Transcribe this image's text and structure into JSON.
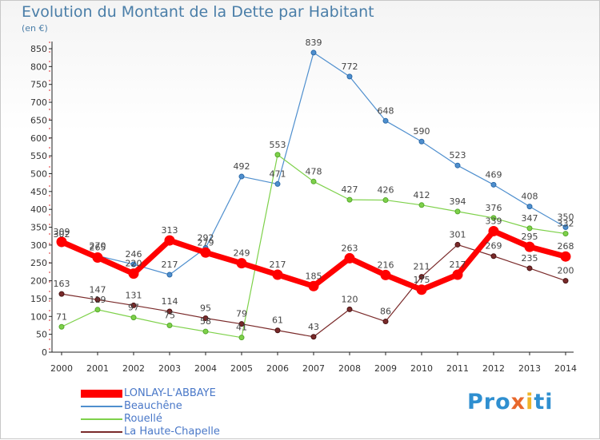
{
  "title": "Evolution du Montant de la Dette par Habitant",
  "unit": "(en €)",
  "logo": "Proxiti",
  "chart_data": {
    "type": "line",
    "title": "Evolution du Montant de la Dette par Habitant",
    "subtitle": "(en €)",
    "xlabel": "",
    "ylabel": "",
    "x": [
      "2000",
      "2001",
      "2002",
      "2003",
      "2004",
      "2005",
      "2006",
      "2007",
      "2008",
      "2009",
      "2010",
      "2011",
      "2012",
      "2013",
      "2014"
    ],
    "yticks": [
      0,
      50,
      100,
      150,
      200,
      250,
      300,
      350,
      400,
      450,
      500,
      550,
      600,
      650,
      700,
      750,
      800,
      850
    ],
    "ylim": [
      0,
      870
    ],
    "grid": false,
    "legend_position": "bottom-left",
    "series": [
      {
        "name": "LONLAY-L'ABBAYE",
        "color": "#ff0000",
        "values": [
          309,
          265,
          220,
          313,
          279,
          249,
          217,
          185,
          263,
          216,
          175,
          217,
          339,
          295,
          268
        ]
      },
      {
        "name": "Beauchêne",
        "color": "#4f8fce",
        "values": [
          302,
          270,
          246,
          217,
          292,
          492,
          471,
          839,
          772,
          648,
          590,
          523,
          469,
          408,
          350
        ]
      },
      {
        "name": "Rouellé",
        "color": "#7ed14a",
        "values": [
          71,
          119,
          97,
          75,
          58,
          41,
          553,
          478,
          427,
          426,
          412,
          394,
          376,
          347,
          332
        ]
      },
      {
        "name": "La Haute-Chapelle",
        "color": "#7a2a2a",
        "values": [
          163,
          147,
          131,
          114,
          95,
          79,
          61,
          43,
          120,
          86,
          211,
          301,
          269,
          235,
          200
        ]
      }
    ]
  }
}
